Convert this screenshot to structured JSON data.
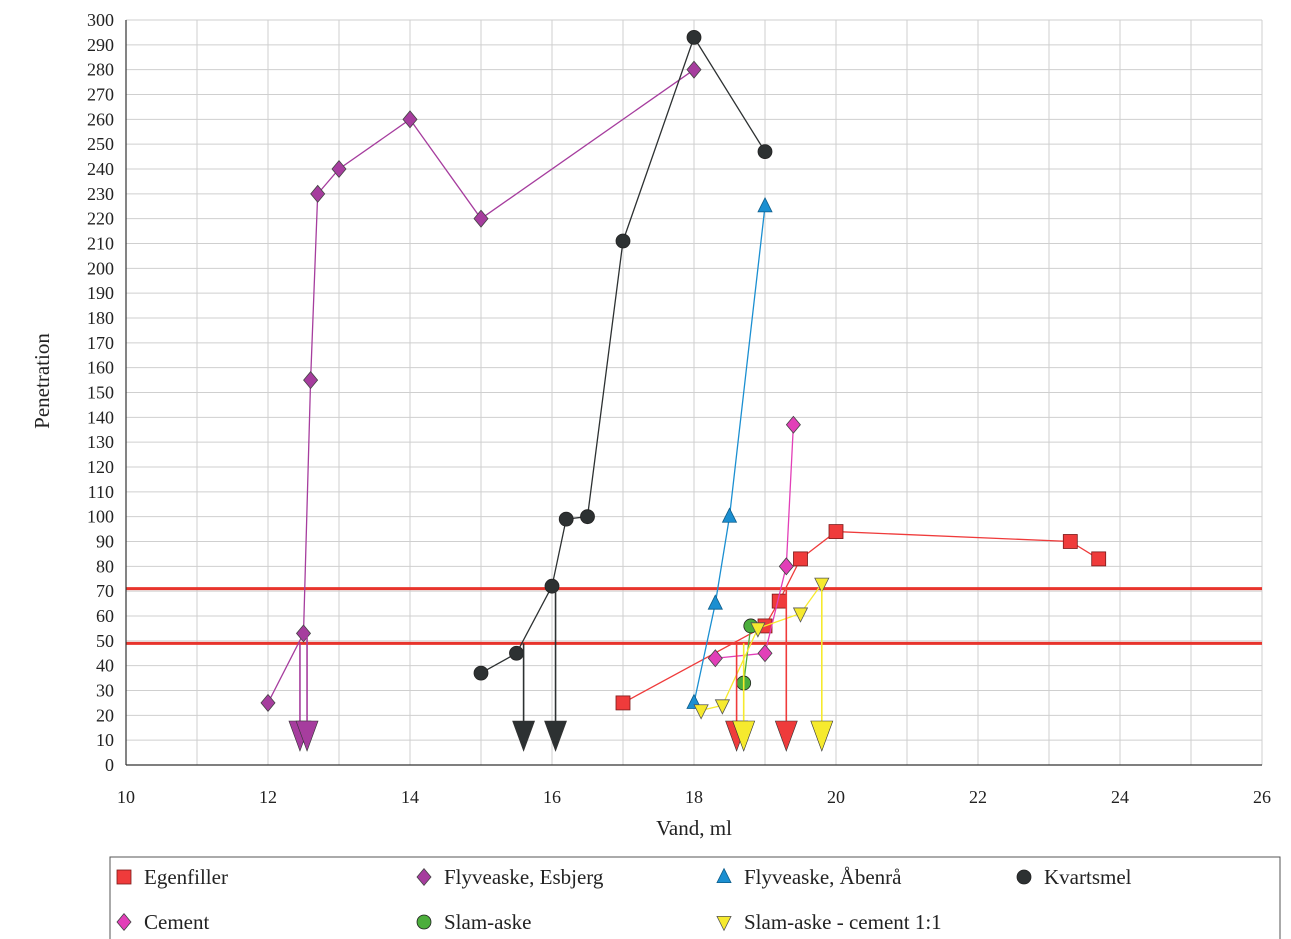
{
  "chart_data": {
    "type": "scatter",
    "xlabel": "Vand, ml",
    "ylabel": "Penetration",
    "xlim": [
      10,
      26
    ],
    "ylim": [
      0,
      300
    ],
    "x_ticks": [
      10,
      12,
      14,
      16,
      18,
      20,
      22,
      24,
      26
    ],
    "y_ticks": [
      0,
      10,
      20,
      30,
      40,
      50,
      60,
      70,
      80,
      90,
      100,
      110,
      120,
      130,
      140,
      150,
      160,
      170,
      180,
      190,
      200,
      210,
      220,
      230,
      240,
      250,
      260,
      270,
      280,
      290,
      300
    ],
    "grid": true,
    "legend_position": "bottom",
    "reference_lines": [
      {
        "y": 71,
        "color": "#e8342c"
      },
      {
        "y": 49,
        "color": "#e8342c"
      }
    ],
    "series": [
      {
        "name": "Egenfiller",
        "marker": "square",
        "color": "#ef3b3b",
        "points": [
          [
            17.0,
            25
          ],
          [
            19.0,
            56
          ],
          [
            19.2,
            66
          ],
          [
            19.5,
            83
          ],
          [
            20.0,
            94
          ],
          [
            23.3,
            90
          ],
          [
            23.7,
            83
          ]
        ],
        "drops": [
          [
            18.6,
            49
          ],
          [
            19.3,
            71
          ]
        ]
      },
      {
        "name": "Flyveaske, Esbjerg",
        "marker": "diamond",
        "color": "#a63d9e",
        "points": [
          [
            12.0,
            25
          ],
          [
            12.5,
            53
          ],
          [
            12.6,
            155
          ],
          [
            12.7,
            230
          ],
          [
            13.0,
            240
          ],
          [
            14.0,
            260
          ],
          [
            15.0,
            220
          ],
          [
            18.0,
            280
          ]
        ],
        "drops": [
          [
            12.45,
            49
          ],
          [
            12.55,
            53
          ]
        ]
      },
      {
        "name": "Flyveaske, Åbenrå",
        "marker": "triangle",
        "color": "#1b8fd1",
        "points": [
          [
            18.0,
            25
          ],
          [
            18.3,
            65
          ],
          [
            18.5,
            100
          ],
          [
            19.0,
            225
          ]
        ],
        "drops": []
      },
      {
        "name": "Kvartsmel",
        "marker": "circle",
        "color": "#2d3132",
        "points": [
          [
            15.0,
            37
          ],
          [
            15.5,
            45
          ],
          [
            16.0,
            72
          ],
          [
            16.2,
            99
          ],
          [
            16.5,
            100
          ],
          [
            17.0,
            211
          ],
          [
            18.0,
            293
          ],
          [
            19.0,
            247
          ]
        ],
        "drops": [
          [
            15.6,
            49
          ],
          [
            16.05,
            71
          ]
        ]
      },
      {
        "name": "Cement",
        "marker": "diamond",
        "color": "#e23fb8",
        "points": [
          [
            18.3,
            43
          ],
          [
            19.0,
            45
          ],
          [
            19.3,
            80
          ],
          [
            19.4,
            137
          ]
        ],
        "drops": []
      },
      {
        "name": "Slam-aske",
        "marker": "circle",
        "color": "#4cae3c",
        "points": [
          [
            18.7,
            33
          ],
          [
            18.8,
            56
          ]
        ],
        "drops": []
      },
      {
        "name": "Slam-aske - cement 1:1",
        "marker": "triangle-down",
        "color": "#f6ea2e",
        "points": [
          [
            18.1,
            22
          ],
          [
            18.4,
            24
          ],
          [
            18.9,
            55
          ],
          [
            19.5,
            61
          ],
          [
            19.8,
            73
          ]
        ],
        "drops": [
          [
            18.7,
            49
          ],
          [
            19.8,
            71
          ]
        ]
      }
    ]
  }
}
